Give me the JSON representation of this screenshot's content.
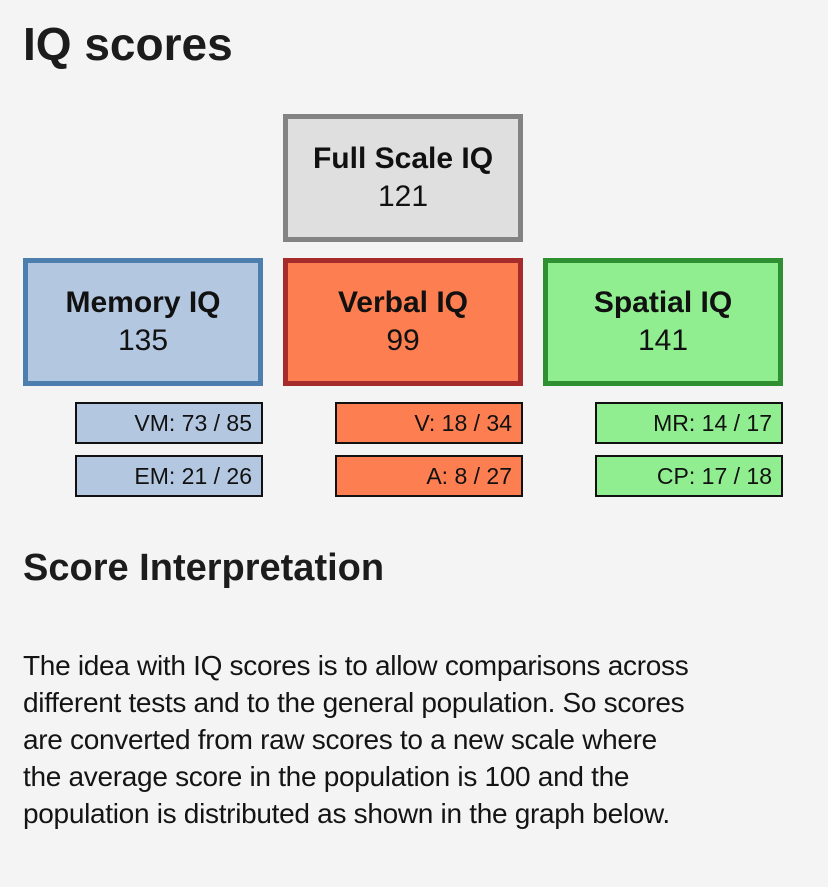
{
  "page": {
    "title": "IQ scores",
    "section_title": "Score Interpretation",
    "paragraph": "The idea with IQ scores is to allow comparisons across\ndifferent tests and to the general population. So scores\nare converted from raw scores to a new scale where\nthe average score in the population is 100 and the\npopulation is distributed as shown in the graph below."
  },
  "scores": {
    "full_scale": {
      "label": "Full Scale IQ",
      "value": "121",
      "fill": "#dfdfdf",
      "border": "#838383"
    },
    "domains": [
      {
        "id": "memory",
        "label": "Memory IQ",
        "value": "135",
        "fill": "#b4c7e1",
        "border": "#4d7fae",
        "subtests": [
          {
            "label": "VM: 73 / 85"
          },
          {
            "label": "EM: 21 / 26"
          }
        ]
      },
      {
        "id": "verbal",
        "label": "Verbal IQ",
        "value": "99",
        "fill": "#fd7e50",
        "border": "#a62c2c",
        "subtests": [
          {
            "label": "V: 18 / 34"
          },
          {
            "label": "A: 8 / 27"
          }
        ]
      },
      {
        "id": "spatial",
        "label": "Spatial IQ",
        "value": "141",
        "fill": "#90ee90",
        "border": "#2e9030",
        "subtests": [
          {
            "label": "MR: 14 / 17"
          },
          {
            "label": "CP: 17 / 18"
          }
        ]
      }
    ]
  },
  "colors": {
    "background": "#f4f4f4",
    "text": "#1b1b1b"
  }
}
